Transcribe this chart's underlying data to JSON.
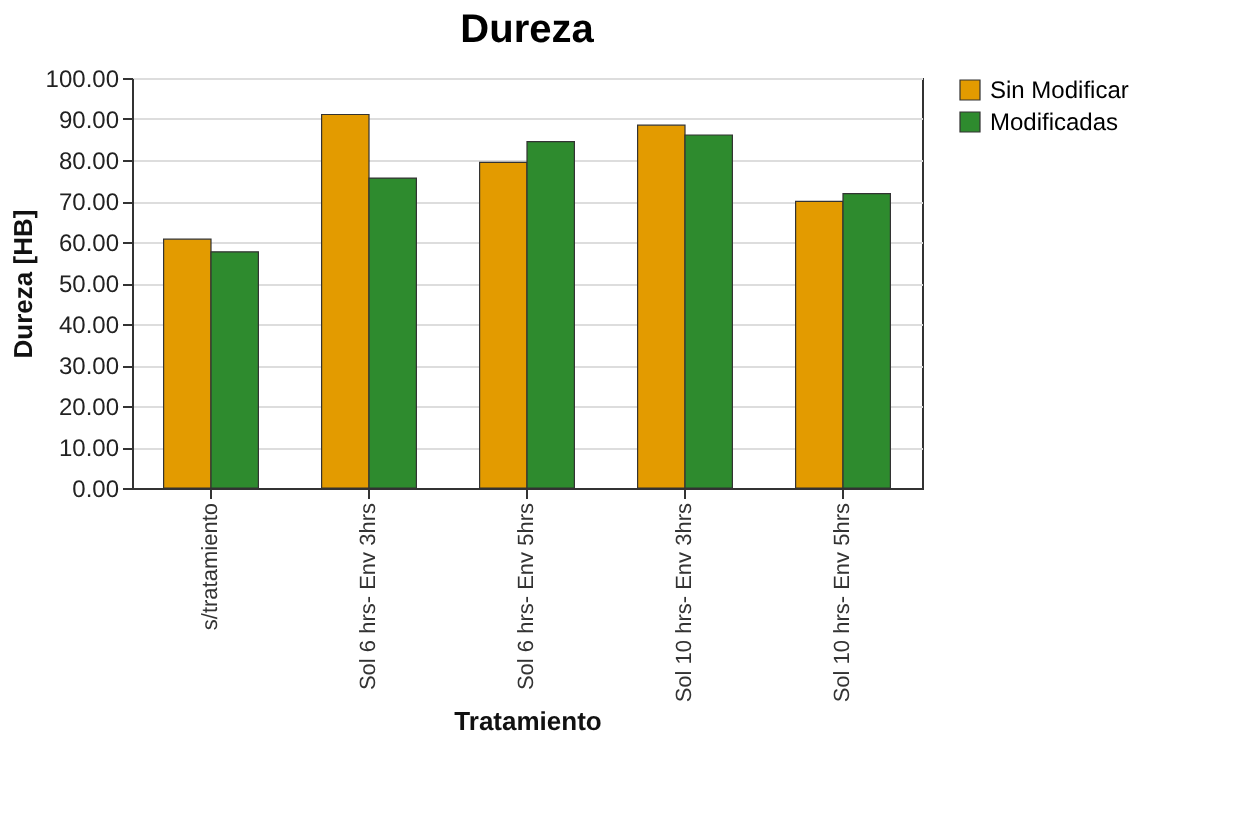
{
  "chart_data": {
    "type": "bar",
    "title": "Dureza",
    "xlabel": "Tratamiento",
    "ylabel": "Dureza [HB]",
    "categories": [
      "s/tratamiento",
      "Sol 6 hrs- Env 3hrs",
      "Sol 6 hrs- Env 5hrs",
      "Sol 10 hrs- Env 3hrs",
      "Sol 10 hrs- Env 5hrs"
    ],
    "series": [
      {
        "name": "Sin Modificar",
        "color": "#e39b00",
        "values": [
          60.7,
          91.1,
          79.4,
          88.5,
          69.9
        ]
      },
      {
        "name": "Modificadas",
        "color": "#2e8b2e",
        "values": [
          57.6,
          75.6,
          84.5,
          86.1,
          71.8
        ]
      }
    ],
    "ylim": [
      0,
      100
    ],
    "yticks": [
      {
        "value": 0,
        "label": "0.00"
      },
      {
        "value": 10,
        "label": "10.00"
      },
      {
        "value": 20,
        "label": "20.00"
      },
      {
        "value": 30,
        "label": "30.00"
      },
      {
        "value": 40,
        "label": "40.00"
      },
      {
        "value": 50,
        "label": "50.00"
      },
      {
        "value": 60,
        "label": "60.00"
      },
      {
        "value": 70,
        "label": "70.00"
      },
      {
        "value": 80,
        "label": "80.00"
      },
      {
        "value": 90,
        "label": "90.00"
      },
      {
        "value": 100,
        "label": "100.00"
      }
    ],
    "grid": "y",
    "legend": "right"
  }
}
